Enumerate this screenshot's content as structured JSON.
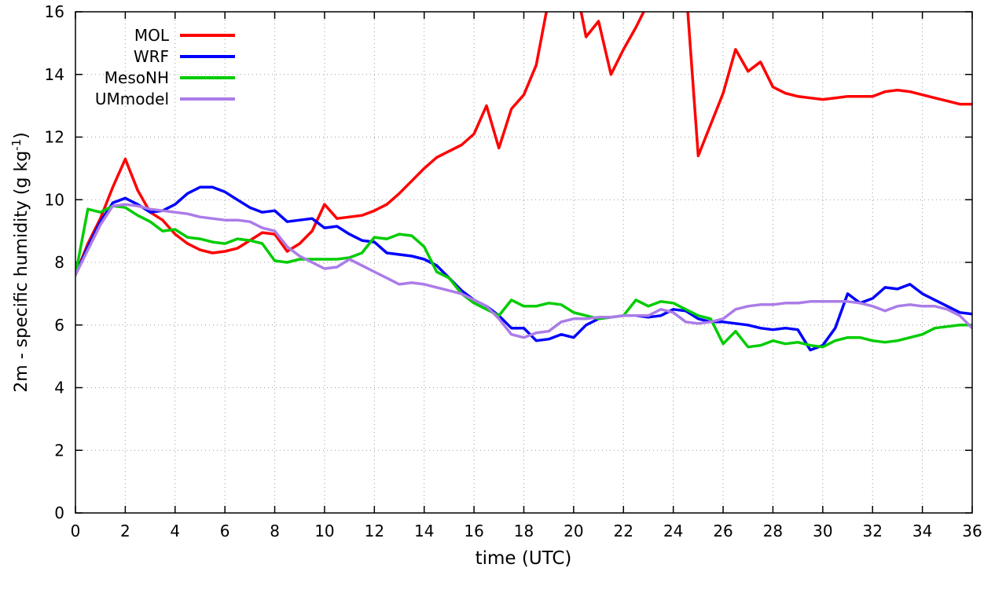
{
  "chart_data": {
    "type": "line",
    "title": "",
    "xlabel": "time (UTC)",
    "ylabel": "2m - specific humidity (g kg⁻¹)",
    "ylabel_parts": {
      "main": "2m - specific humidity (g kg",
      "sup": "-1",
      "close": ")"
    },
    "xlim": [
      0,
      36
    ],
    "ylim": [
      0,
      16
    ],
    "xticks": [
      0,
      2,
      4,
      6,
      8,
      10,
      12,
      14,
      16,
      18,
      20,
      22,
      24,
      26,
      28,
      30,
      32,
      34,
      36
    ],
    "yticks": [
      0,
      2,
      4,
      6,
      8,
      10,
      12,
      14,
      16
    ],
    "grid": true,
    "grid_style": "dotted",
    "grid_color": "#9a9a9a",
    "axis_color": "#000000",
    "background_color": "#ffffff",
    "legend_position": "top-left",
    "x": [
      0,
      0.5,
      1,
      1.5,
      2,
      2.5,
      3,
      3.5,
      4,
      4.5,
      5,
      5.5,
      6,
      6.5,
      7,
      7.5,
      8,
      8.5,
      9,
      9.5,
      10,
      10.5,
      11,
      11.5,
      12,
      12.5,
      13,
      13.5,
      14,
      14.5,
      15,
      15.5,
      16,
      16.5,
      17,
      17.5,
      18,
      18.5,
      19,
      19.5,
      20,
      20.5,
      21,
      21.5,
      22,
      22.5,
      23,
      23.5,
      24,
      24.5,
      25,
      25.5,
      26,
      26.5,
      27,
      27.5,
      28,
      28.5,
      29,
      29.5,
      30,
      30.5,
      31,
      31.5,
      32,
      32.5,
      33,
      33.5,
      34,
      34.5,
      35,
      35.5,
      36
    ],
    "series": [
      {
        "name": "MOL",
        "color": "#ff0000",
        "values": [
          7.6,
          8.6,
          9.4,
          10.4,
          11.3,
          10.3,
          9.6,
          9.35,
          8.9,
          8.6,
          8.4,
          8.3,
          8.35,
          8.45,
          8.7,
          8.95,
          8.9,
          8.35,
          8.6,
          9.0,
          9.85,
          9.4,
          9.45,
          9.5,
          9.65,
          9.85,
          10.2,
          10.6,
          11.0,
          11.35,
          11.55,
          11.75,
          12.1,
          13.0,
          11.65,
          12.9,
          13.35,
          14.3,
          16.4,
          17.5,
          17.2,
          15.2,
          15.7,
          14.0,
          14.8,
          15.5,
          16.3,
          17.0,
          17.2,
          16.9,
          11.4,
          12.4,
          13.4,
          14.8,
          14.1,
          14.4,
          13.6,
          13.4,
          13.3,
          13.25,
          13.2,
          13.25,
          13.3,
          13.3,
          13.3,
          13.45,
          13.5,
          13.45,
          13.35,
          13.25,
          13.15,
          13.05,
          13.05
        ]
      },
      {
        "name": "WRF",
        "color": "#0000ff",
        "values": [
          7.6,
          8.5,
          9.3,
          9.9,
          10.05,
          9.85,
          9.6,
          9.65,
          9.85,
          10.2,
          10.4,
          10.4,
          10.25,
          10.0,
          9.75,
          9.6,
          9.65,
          9.3,
          9.35,
          9.4,
          9.1,
          9.15,
          8.9,
          8.7,
          8.65,
          8.3,
          8.25,
          8.2,
          8.1,
          7.9,
          7.5,
          7.1,
          6.8,
          6.6,
          6.3,
          5.9,
          5.9,
          5.5,
          5.55,
          5.7,
          5.6,
          6.0,
          6.2,
          6.25,
          6.3,
          6.3,
          6.25,
          6.3,
          6.5,
          6.45,
          6.2,
          6.1,
          6.1,
          6.05,
          6.0,
          5.9,
          5.85,
          5.9,
          5.85,
          5.2,
          5.35,
          5.9,
          7.0,
          6.7,
          6.85,
          7.2,
          7.15,
          7.3,
          7.0,
          6.8,
          6.6,
          6.4,
          6.35
        ]
      },
      {
        "name": "MesoNH",
        "color": "#00cc00",
        "values": [
          7.6,
          9.7,
          9.6,
          9.8,
          9.75,
          9.5,
          9.3,
          9.0,
          9.05,
          8.8,
          8.75,
          8.65,
          8.6,
          8.75,
          8.7,
          8.6,
          8.05,
          8.0,
          8.1,
          8.1,
          8.1,
          8.1,
          8.15,
          8.3,
          8.8,
          8.75,
          8.9,
          8.85,
          8.5,
          7.7,
          7.5,
          7.0,
          6.7,
          6.5,
          6.3,
          6.8,
          6.6,
          6.6,
          6.7,
          6.65,
          6.4,
          6.3,
          6.2,
          6.25,
          6.3,
          6.8,
          6.6,
          6.75,
          6.7,
          6.5,
          6.3,
          6.2,
          5.4,
          5.8,
          5.3,
          5.35,
          5.5,
          5.4,
          5.45,
          5.35,
          5.3,
          5.5,
          5.6,
          5.6,
          5.5,
          5.45,
          5.5,
          5.6,
          5.7,
          5.9,
          5.95,
          6.0,
          6.0
        ]
      },
      {
        "name": "UMmodel",
        "color": "#ab7ce8",
        "values": [
          7.6,
          8.4,
          9.2,
          9.8,
          9.85,
          9.8,
          9.7,
          9.65,
          9.6,
          9.55,
          9.45,
          9.4,
          9.35,
          9.35,
          9.3,
          9.1,
          9.0,
          8.5,
          8.2,
          8.0,
          7.8,
          7.85,
          8.1,
          7.9,
          7.7,
          7.5,
          7.3,
          7.35,
          7.3,
          7.2,
          7.1,
          7.0,
          6.8,
          6.6,
          6.2,
          5.7,
          5.6,
          5.75,
          5.8,
          6.1,
          6.2,
          6.2,
          6.25,
          6.25,
          6.3,
          6.3,
          6.3,
          6.5,
          6.4,
          6.1,
          6.05,
          6.1,
          6.2,
          6.5,
          6.6,
          6.65,
          6.65,
          6.7,
          6.7,
          6.75,
          6.75,
          6.75,
          6.75,
          6.7,
          6.6,
          6.45,
          6.6,
          6.65,
          6.6,
          6.6,
          6.5,
          6.3,
          5.9
        ]
      }
    ]
  }
}
